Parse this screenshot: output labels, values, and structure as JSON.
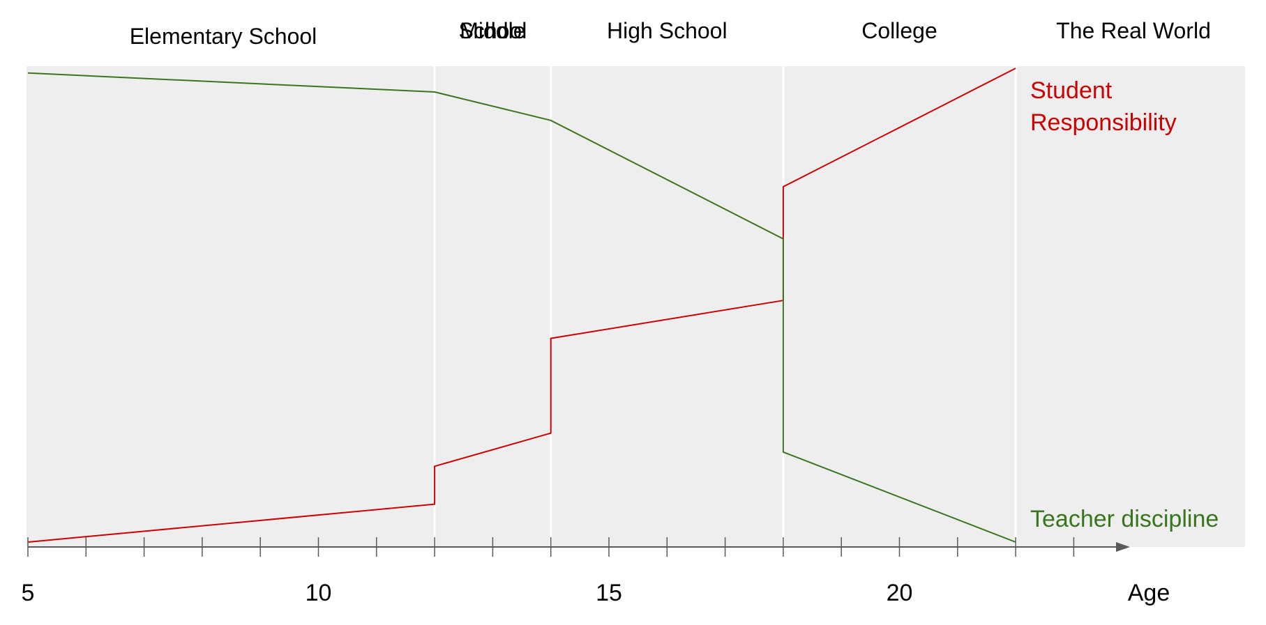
{
  "chart_data": {
    "type": "line",
    "title": "",
    "xlabel": "Age",
    "ylabel": "",
    "xlim": [
      5,
      25
    ],
    "ylim": [
      0,
      100
    ],
    "grid": false,
    "x_ticks": [
      5,
      6,
      7,
      8,
      9,
      10,
      11,
      12,
      13,
      14,
      15,
      16,
      17,
      18,
      19,
      20,
      21,
      22,
      23
    ],
    "x_tick_labels": [
      {
        "value": 5,
        "label": "5"
      },
      {
        "value": 10,
        "label": "10"
      },
      {
        "value": 15,
        "label": "15"
      },
      {
        "value": 20,
        "label": "20"
      }
    ],
    "stages": [
      {
        "name": "Elementary School",
        "lines": [
          "Elementary School"
        ],
        "start": 5,
        "end": 12
      },
      {
        "name": "Middle School",
        "lines": [
          "Middle",
          "School"
        ],
        "start": 12,
        "end": 14
      },
      {
        "name": "High School",
        "lines": [
          "High School"
        ],
        "start": 14,
        "end": 18
      },
      {
        "name": "College",
        "lines": [
          "College"
        ],
        "start": 18,
        "end": 22
      },
      {
        "name": "The Real World",
        "lines": [
          "The Real World"
        ],
        "start": 22,
        "end": 25
      }
    ],
    "series": [
      {
        "name": "Student Responsibility",
        "label_lines": [
          "Student",
          "Responsibility"
        ],
        "color": "#cc0000",
        "points": [
          [
            5,
            0
          ],
          [
            12,
            8
          ],
          [
            12,
            16
          ],
          [
            14,
            23
          ],
          [
            14,
            43
          ],
          [
            18,
            51
          ],
          [
            18,
            75
          ],
          [
            22,
            100
          ]
        ]
      },
      {
        "name": "Teacher discipline",
        "label_lines": [
          "Teacher discipline"
        ],
        "color": "#38761d",
        "points": [
          [
            5,
            99
          ],
          [
            12,
            95
          ],
          [
            14,
            89
          ],
          [
            18,
            64
          ],
          [
            18,
            19
          ],
          [
            22,
            0
          ]
        ]
      }
    ],
    "colors": {
      "plot_background": "#eeeeee",
      "stage_divider": "#ffffff",
      "axis": "#595959"
    }
  }
}
